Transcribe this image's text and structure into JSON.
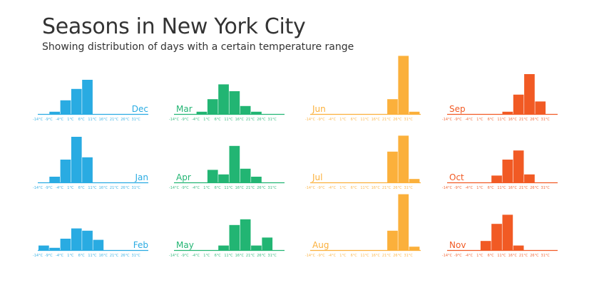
{
  "header": {
    "title": "Seasons in New York City",
    "subtitle": "Showing distribution of days with a certain temperature range"
  },
  "colors": {
    "winter": "#29abe2",
    "spring": "#22b573",
    "summer": "#fbb03b",
    "fall": "#f15a24"
  },
  "chart_data": {
    "type": "bar",
    "layout": "small-multiples 3 rows x 4 columns",
    "bins": [
      "-14°C",
      "-9°C",
      "-4°C",
      "1°C",
      "6°C",
      "11°C",
      "16°C",
      "21°C",
      "26°C",
      "31°C"
    ],
    "ylim": [
      0,
      25
    ],
    "grid": false,
    "months": [
      {
        "name": "Dec",
        "season": "winter",
        "label_side": "right",
        "values": [
          0,
          1,
          6,
          11,
          15,
          0,
          0,
          0,
          0,
          0
        ]
      },
      {
        "name": "Jan",
        "season": "winter",
        "label_side": "right",
        "values": [
          0,
          2.5,
          10,
          20,
          11,
          0,
          0,
          0,
          0,
          0
        ]
      },
      {
        "name": "Feb",
        "season": "winter",
        "label_side": "right",
        "values": [
          2,
          1,
          5,
          9.5,
          8.5,
          4.5,
          0,
          0,
          0,
          0
        ]
      },
      {
        "name": "Mar",
        "season": "spring",
        "label_side": "left",
        "values": [
          0,
          0,
          1,
          6.5,
          13,
          10,
          3.5,
          1,
          0,
          0
        ]
      },
      {
        "name": "Apr",
        "season": "spring",
        "label_side": "left",
        "values": [
          0,
          0,
          0,
          5.5,
          3.5,
          16,
          6,
          2.5,
          0,
          0
        ]
      },
      {
        "name": "May",
        "season": "spring",
        "label_side": "left",
        "values": [
          0,
          0,
          0,
          0,
          2,
          11,
          13.5,
          2,
          5.5,
          0
        ]
      },
      {
        "name": "Jun",
        "season": "summer",
        "label_side": "left",
        "values": [
          0,
          0,
          0,
          0,
          0,
          0,
          0,
          6.5,
          25.5,
          1
        ]
      },
      {
        "name": "Jul",
        "season": "summer",
        "label_side": "left",
        "values": [
          0,
          0,
          0,
          0,
          0,
          0,
          0,
          13.5,
          20.5,
          1.5
        ]
      },
      {
        "name": "Aug",
        "season": "summer",
        "label_side": "left",
        "values": [
          0,
          0,
          0,
          0,
          0,
          0,
          0,
          8.5,
          24.5,
          1.5
        ]
      },
      {
        "name": "Sep",
        "season": "fall",
        "label_side": "left",
        "values": [
          0,
          0,
          0,
          0,
          0,
          1,
          8.5,
          17.5,
          5.5,
          0
        ]
      },
      {
        "name": "Oct",
        "season": "fall",
        "label_side": "left",
        "values": [
          0,
          0,
          0,
          0,
          3,
          10,
          14,
          3.5,
          0,
          0
        ]
      },
      {
        "name": "Nov",
        "season": "fall",
        "label_side": "left",
        "values": [
          0,
          0,
          0,
          4,
          11.5,
          15.5,
          2,
          0,
          0,
          0
        ]
      }
    ]
  }
}
